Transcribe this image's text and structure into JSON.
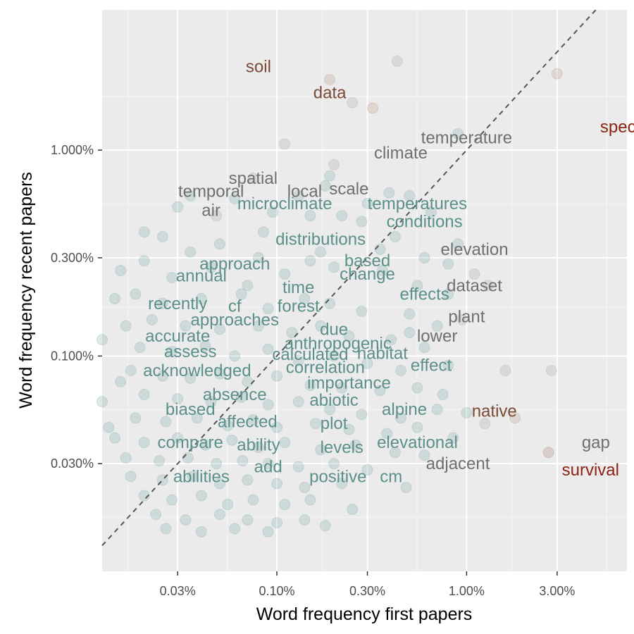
{
  "chart_data": {
    "type": "scatter",
    "title": "",
    "xlabel": "Word frequency first papers",
    "ylabel": "Word frequency recent papers",
    "x_scale": "log10",
    "y_scale": "log10",
    "xlim": [
      0.012,
      7.0
    ],
    "ylim": [
      0.009,
      4.8
    ],
    "x_ticks": [
      0.03,
      0.1,
      0.3,
      1.0,
      3.0
    ],
    "x_tick_labels": [
      "0.03%",
      "0.10%",
      "0.30%",
      "1.00%",
      "3.00%"
    ],
    "y_ticks": [
      0.03,
      0.1,
      0.3,
      1.0
    ],
    "y_tick_labels": [
      "0.030%",
      "0.100%",
      "0.300%",
      "1.000%"
    ],
    "grid": true,
    "reference_line": "y = x (dashed)",
    "colors": {
      "panel": "#ebebeb",
      "grid_major": "#ffffff",
      "grid_minor": "#f5f5f5",
      "points": "#6aa0a0",
      "teal_label": "#5b8f8a",
      "gray_label": "#6f6f6f",
      "brown_label": "#7a4a35",
      "red_label": "#8b2413",
      "diagonal": "#555555"
    },
    "labeled_words": [
      {
        "word": "soil",
        "x": 0.08,
        "y": 2.55,
        "color": "brown"
      },
      {
        "word": "data",
        "x": 0.19,
        "y": 1.9,
        "color": "brown"
      },
      {
        "word": "specie",
        "x": 6.8,
        "y": 1.3,
        "color": "red"
      },
      {
        "word": "temperature",
        "x": 1.0,
        "y": 1.15,
        "color": "gray"
      },
      {
        "word": "climate",
        "x": 0.45,
        "y": 0.97,
        "color": "gray"
      },
      {
        "word": "spatial",
        "x": 0.075,
        "y": 0.73,
        "color": "gray"
      },
      {
        "word": "temporal",
        "x": 0.045,
        "y": 0.63,
        "color": "gray"
      },
      {
        "word": "local",
        "x": 0.14,
        "y": 0.63,
        "color": "gray"
      },
      {
        "word": "scale",
        "x": 0.24,
        "y": 0.65,
        "color": "gray"
      },
      {
        "word": "air",
        "x": 0.045,
        "y": 0.51,
        "color": "gray"
      },
      {
        "word": "microclimate",
        "x": 0.11,
        "y": 0.55,
        "color": "teal"
      },
      {
        "word": "temperatures",
        "x": 0.55,
        "y": 0.55,
        "color": "teal"
      },
      {
        "word": "conditions",
        "x": 0.6,
        "y": 0.45,
        "color": "teal"
      },
      {
        "word": "distributions",
        "x": 0.17,
        "y": 0.37,
        "color": "teal"
      },
      {
        "word": "elevation",
        "x": 1.1,
        "y": 0.33,
        "color": "gray"
      },
      {
        "word": "approach",
        "x": 0.06,
        "y": 0.28,
        "color": "teal"
      },
      {
        "word": "based",
        "x": 0.3,
        "y": 0.29,
        "color": "teal"
      },
      {
        "word": "change",
        "x": 0.3,
        "y": 0.25,
        "color": "teal"
      },
      {
        "word": "annual",
        "x": 0.04,
        "y": 0.245,
        "color": "teal"
      },
      {
        "word": "dataset",
        "x": 1.1,
        "y": 0.22,
        "color": "gray"
      },
      {
        "word": "time",
        "x": 0.13,
        "y": 0.215,
        "color": "teal"
      },
      {
        "word": "effects",
        "x": 0.6,
        "y": 0.2,
        "color": "teal"
      },
      {
        "word": "recently",
        "x": 0.03,
        "y": 0.18,
        "color": "teal"
      },
      {
        "word": "cf",
        "x": 0.06,
        "y": 0.175,
        "color": "teal"
      },
      {
        "word": "forest",
        "x": 0.13,
        "y": 0.175,
        "color": "teal"
      },
      {
        "word": "approaches",
        "x": 0.06,
        "y": 0.15,
        "color": "teal"
      },
      {
        "word": "plant",
        "x": 1.0,
        "y": 0.155,
        "color": "gray"
      },
      {
        "word": "due",
        "x": 0.2,
        "y": 0.135,
        "color": "teal"
      },
      {
        "word": "accurate",
        "x": 0.03,
        "y": 0.125,
        "color": "teal"
      },
      {
        "word": "lower",
        "x": 0.7,
        "y": 0.125,
        "color": "gray"
      },
      {
        "word": "anthropogenic",
        "x": 0.21,
        "y": 0.115,
        "color": "teal"
      },
      {
        "word": "assess",
        "x": 0.035,
        "y": 0.105,
        "color": "teal"
      },
      {
        "word": "calculated",
        "x": 0.15,
        "y": 0.102,
        "color": "teal"
      },
      {
        "word": "habitat",
        "x": 0.36,
        "y": 0.103,
        "color": "teal"
      },
      {
        "word": "acknowledged",
        "x": 0.038,
        "y": 0.085,
        "color": "teal"
      },
      {
        "word": "correlation",
        "x": 0.18,
        "y": 0.088,
        "color": "teal"
      },
      {
        "word": "effect",
        "x": 0.65,
        "y": 0.09,
        "color": "teal"
      },
      {
        "word": "importance",
        "x": 0.24,
        "y": 0.074,
        "color": "teal"
      },
      {
        "word": "absence",
        "x": 0.06,
        "y": 0.065,
        "color": "teal"
      },
      {
        "word": "abiotic",
        "x": 0.2,
        "y": 0.061,
        "color": "teal"
      },
      {
        "word": "biased",
        "x": 0.035,
        "y": 0.055,
        "color": "teal"
      },
      {
        "word": "alpine",
        "x": 0.47,
        "y": 0.055,
        "color": "teal"
      },
      {
        "word": "native",
        "x": 1.4,
        "y": 0.054,
        "color": "brown"
      },
      {
        "word": "affected",
        "x": 0.07,
        "y": 0.048,
        "color": "teal"
      },
      {
        "word": "plot",
        "x": 0.2,
        "y": 0.047,
        "color": "teal"
      },
      {
        "word": "compare",
        "x": 0.035,
        "y": 0.038,
        "color": "teal"
      },
      {
        "word": "ability",
        "x": 0.08,
        "y": 0.037,
        "color": "teal"
      },
      {
        "word": "levels",
        "x": 0.22,
        "y": 0.036,
        "color": "teal"
      },
      {
        "word": "elevational",
        "x": 0.55,
        "y": 0.038,
        "color": "teal"
      },
      {
        "word": "gap",
        "x": 4.8,
        "y": 0.038,
        "color": "gray"
      },
      {
        "word": "add",
        "x": 0.09,
        "y": 0.029,
        "color": "teal"
      },
      {
        "word": "adjacent",
        "x": 0.9,
        "y": 0.03,
        "color": "gray"
      },
      {
        "word": "abilities",
        "x": 0.04,
        "y": 0.026,
        "color": "teal"
      },
      {
        "word": "positive",
        "x": 0.21,
        "y": 0.026,
        "color": "teal"
      },
      {
        "word": "cm",
        "x": 0.4,
        "y": 0.026,
        "color": "teal"
      },
      {
        "word": "survival",
        "x": 4.5,
        "y": 0.028,
        "color": "red"
      }
    ],
    "points": [
      {
        "x": 0.19,
        "y": 2.2,
        "c": "brown"
      },
      {
        "x": 0.43,
        "y": 2.7,
        "c": "gray"
      },
      {
        "x": 3.0,
        "y": 2.35,
        "c": "brown"
      },
      {
        "x": 0.25,
        "y": 1.7,
        "c": "gray"
      },
      {
        "x": 0.32,
        "y": 1.6,
        "c": "brown"
      },
      {
        "x": 0.11,
        "y": 1.07,
        "c": "gray"
      },
      {
        "x": 0.9,
        "y": 1.2,
        "c": "teal"
      },
      {
        "x": 0.2,
        "y": 0.85,
        "c": "gray"
      },
      {
        "x": 0.19,
        "y": 0.75,
        "c": "teal"
      },
      {
        "x": 0.075,
        "y": 0.73,
        "c": "gray"
      },
      {
        "x": 0.18,
        "y": 0.67,
        "c": "teal"
      },
      {
        "x": 0.39,
        "y": 0.62,
        "c": "teal"
      },
      {
        "x": 0.5,
        "y": 0.6,
        "c": "teal"
      },
      {
        "x": 0.03,
        "y": 0.53,
        "c": "teal"
      },
      {
        "x": 0.048,
        "y": 0.48,
        "c": "gray"
      },
      {
        "x": 0.095,
        "y": 0.5,
        "c": "teal"
      },
      {
        "x": 0.15,
        "y": 0.48,
        "c": "teal"
      },
      {
        "x": 0.22,
        "y": 0.48,
        "c": "teal"
      },
      {
        "x": 0.025,
        "y": 0.38,
        "c": "teal"
      },
      {
        "x": 0.035,
        "y": 0.32,
        "c": "teal"
      },
      {
        "x": 0.05,
        "y": 0.35,
        "c": "teal"
      },
      {
        "x": 0.085,
        "y": 0.4,
        "c": "teal"
      },
      {
        "x": 0.28,
        "y": 0.45,
        "c": "teal"
      },
      {
        "x": 0.42,
        "y": 0.38,
        "c": "teal"
      },
      {
        "x": 0.9,
        "y": 0.35,
        "c": "teal"
      },
      {
        "x": 0.6,
        "y": 0.3,
        "c": "teal"
      },
      {
        "x": 0.02,
        "y": 0.29,
        "c": "teal"
      },
      {
        "x": 0.015,
        "y": 0.26,
        "c": "teal"
      },
      {
        "x": 0.028,
        "y": 0.24,
        "c": "teal"
      },
      {
        "x": 0.045,
        "y": 0.27,
        "c": "teal"
      },
      {
        "x": 0.07,
        "y": 0.22,
        "c": "teal"
      },
      {
        "x": 0.11,
        "y": 0.25,
        "c": "teal"
      },
      {
        "x": 0.15,
        "y": 0.29,
        "c": "teal"
      },
      {
        "x": 0.2,
        "y": 0.27,
        "c": "teal"
      },
      {
        "x": 0.36,
        "y": 0.26,
        "c": "teal"
      },
      {
        "x": 0.55,
        "y": 0.22,
        "c": "teal"
      },
      {
        "x": 0.8,
        "y": 0.2,
        "c": "teal"
      },
      {
        "x": 1.3,
        "y": 0.22,
        "c": "gray"
      },
      {
        "x": 0.018,
        "y": 0.2,
        "c": "teal"
      },
      {
        "x": 0.025,
        "y": 0.18,
        "c": "teal"
      },
      {
        "x": 0.04,
        "y": 0.19,
        "c": "teal"
      },
      {
        "x": 0.065,
        "y": 0.2,
        "c": "teal"
      },
      {
        "x": 0.09,
        "y": 0.17,
        "c": "teal"
      },
      {
        "x": 0.14,
        "y": 0.19,
        "c": "teal"
      },
      {
        "x": 0.19,
        "y": 0.18,
        "c": "teal"
      },
      {
        "x": 0.28,
        "y": 0.165,
        "c": "teal"
      },
      {
        "x": 0.5,
        "y": 0.16,
        "c": "teal"
      },
      {
        "x": 0.7,
        "y": 0.14,
        "c": "teal"
      },
      {
        "x": 0.95,
        "y": 0.15,
        "c": "gray"
      },
      {
        "x": 0.022,
        "y": 0.15,
        "c": "teal"
      },
      {
        "x": 0.033,
        "y": 0.14,
        "c": "teal"
      },
      {
        "x": 0.05,
        "y": 0.135,
        "c": "teal"
      },
      {
        "x": 0.08,
        "y": 0.14,
        "c": "teal"
      },
      {
        "x": 0.12,
        "y": 0.13,
        "c": "teal"
      },
      {
        "x": 0.17,
        "y": 0.14,
        "c": "teal"
      },
      {
        "x": 0.24,
        "y": 0.125,
        "c": "teal"
      },
      {
        "x": 0.4,
        "y": 0.12,
        "c": "teal"
      },
      {
        "x": 0.6,
        "y": 0.11,
        "c": "teal"
      },
      {
        "x": 0.019,
        "y": 0.11,
        "c": "teal"
      },
      {
        "x": 0.028,
        "y": 0.105,
        "c": "teal"
      },
      {
        "x": 0.042,
        "y": 0.112,
        "c": "teal"
      },
      {
        "x": 0.06,
        "y": 0.1,
        "c": "teal"
      },
      {
        "x": 0.09,
        "y": 0.108,
        "c": "teal"
      },
      {
        "x": 0.13,
        "y": 0.095,
        "c": "teal"
      },
      {
        "x": 0.2,
        "y": 0.1,
        "c": "teal"
      },
      {
        "x": 0.3,
        "y": 0.092,
        "c": "teal"
      },
      {
        "x": 0.45,
        "y": 0.085,
        "c": "teal"
      },
      {
        "x": 0.8,
        "y": 0.09,
        "c": "teal"
      },
      {
        "x": 1.6,
        "y": 0.085,
        "c": "gray"
      },
      {
        "x": 2.8,
        "y": 0.085,
        "c": "gray"
      },
      {
        "x": 0.017,
        "y": 0.085,
        "c": "teal"
      },
      {
        "x": 0.025,
        "y": 0.08,
        "c": "teal"
      },
      {
        "x": 0.035,
        "y": 0.078,
        "c": "teal"
      },
      {
        "x": 0.05,
        "y": 0.082,
        "c": "teal"
      },
      {
        "x": 0.07,
        "y": 0.075,
        "c": "teal"
      },
      {
        "x": 0.1,
        "y": 0.08,
        "c": "teal"
      },
      {
        "x": 0.15,
        "y": 0.072,
        "c": "teal"
      },
      {
        "x": 0.22,
        "y": 0.07,
        "c": "teal"
      },
      {
        "x": 0.35,
        "y": 0.068,
        "c": "teal"
      },
      {
        "x": 0.55,
        "y": 0.07,
        "c": "teal"
      },
      {
        "x": 0.02,
        "y": 0.065,
        "c": "teal"
      },
      {
        "x": 0.03,
        "y": 0.062,
        "c": "teal"
      },
      {
        "x": 0.045,
        "y": 0.06,
        "c": "teal"
      },
      {
        "x": 0.065,
        "y": 0.063,
        "c": "teal"
      },
      {
        "x": 0.09,
        "y": 0.058,
        "c": "teal"
      },
      {
        "x": 0.13,
        "y": 0.06,
        "c": "teal"
      },
      {
        "x": 0.19,
        "y": 0.055,
        "c": "teal"
      },
      {
        "x": 0.28,
        "y": 0.052,
        "c": "teal"
      },
      {
        "x": 0.45,
        "y": 0.05,
        "c": "teal"
      },
      {
        "x": 0.7,
        "y": 0.055,
        "c": "teal"
      },
      {
        "x": 1.0,
        "y": 0.053,
        "c": "teal"
      },
      {
        "x": 1.25,
        "y": 0.047,
        "c": "gray"
      },
      {
        "x": 1.8,
        "y": 0.05,
        "c": "brown"
      },
      {
        "x": 0.018,
        "y": 0.05,
        "c": "teal"
      },
      {
        "x": 0.026,
        "y": 0.048,
        "c": "teal"
      },
      {
        "x": 0.038,
        "y": 0.05,
        "c": "teal"
      },
      {
        "x": 0.055,
        "y": 0.046,
        "c": "teal"
      },
      {
        "x": 0.075,
        "y": 0.049,
        "c": "teal"
      },
      {
        "x": 0.1,
        "y": 0.045,
        "c": "teal"
      },
      {
        "x": 0.16,
        "y": 0.047,
        "c": "teal"
      },
      {
        "x": 0.24,
        "y": 0.044,
        "c": "teal"
      },
      {
        "x": 0.38,
        "y": 0.042,
        "c": "teal"
      },
      {
        "x": 0.014,
        "y": 0.04,
        "c": "teal"
      },
      {
        "x": 0.02,
        "y": 0.038,
        "c": "teal"
      },
      {
        "x": 0.03,
        "y": 0.04,
        "c": "teal"
      },
      {
        "x": 0.042,
        "y": 0.037,
        "c": "teal"
      },
      {
        "x": 0.058,
        "y": 0.039,
        "c": "teal"
      },
      {
        "x": 0.08,
        "y": 0.036,
        "c": "teal"
      },
      {
        "x": 0.11,
        "y": 0.038,
        "c": "teal"
      },
      {
        "x": 0.17,
        "y": 0.035,
        "c": "teal"
      },
      {
        "x": 0.26,
        "y": 0.037,
        "c": "teal"
      },
      {
        "x": 0.42,
        "y": 0.034,
        "c": "teal"
      },
      {
        "x": 0.6,
        "y": 0.033,
        "c": "teal"
      },
      {
        "x": 2.7,
        "y": 0.034,
        "c": "red"
      },
      {
        "x": 0.016,
        "y": 0.032,
        "c": "teal"
      },
      {
        "x": 0.024,
        "y": 0.031,
        "c": "teal"
      },
      {
        "x": 0.034,
        "y": 0.032,
        "c": "teal"
      },
      {
        "x": 0.048,
        "y": 0.03,
        "c": "teal"
      },
      {
        "x": 0.066,
        "y": 0.031,
        "c": "teal"
      },
      {
        "x": 0.09,
        "y": 0.03,
        "c": "teal"
      },
      {
        "x": 0.13,
        "y": 0.029,
        "c": "teal"
      },
      {
        "x": 0.2,
        "y": 0.03,
        "c": "teal"
      },
      {
        "x": 0.3,
        "y": 0.028,
        "c": "teal"
      },
      {
        "x": 0.017,
        "y": 0.026,
        "c": "teal"
      },
      {
        "x": 0.025,
        "y": 0.025,
        "c": "teal"
      },
      {
        "x": 0.036,
        "y": 0.026,
        "c": "teal"
      },
      {
        "x": 0.05,
        "y": 0.024,
        "c": "teal"
      },
      {
        "x": 0.07,
        "y": 0.025,
        "c": "teal"
      },
      {
        "x": 0.1,
        "y": 0.024,
        "c": "teal"
      },
      {
        "x": 0.14,
        "y": 0.023,
        "c": "teal"
      },
      {
        "x": 0.22,
        "y": 0.024,
        "c": "teal"
      },
      {
        "x": 0.48,
        "y": 0.023,
        "c": "teal"
      },
      {
        "x": 0.02,
        "y": 0.021,
        "c": "teal"
      },
      {
        "x": 0.028,
        "y": 0.02,
        "c": "teal"
      },
      {
        "x": 0.04,
        "y": 0.021,
        "c": "teal"
      },
      {
        "x": 0.055,
        "y": 0.019,
        "c": "teal"
      },
      {
        "x": 0.075,
        "y": 0.02,
        "c": "teal"
      },
      {
        "x": 0.11,
        "y": 0.019,
        "c": "teal"
      },
      {
        "x": 0.15,
        "y": 0.02,
        "c": "teal"
      },
      {
        "x": 0.25,
        "y": 0.018,
        "c": "teal"
      },
      {
        "x": 0.023,
        "y": 0.017,
        "c": "teal"
      },
      {
        "x": 0.033,
        "y": 0.016,
        "c": "teal"
      },
      {
        "x": 0.05,
        "y": 0.017,
        "c": "teal"
      },
      {
        "x": 0.07,
        "y": 0.016,
        "c": "teal"
      },
      {
        "x": 0.1,
        "y": 0.0155,
        "c": "teal"
      },
      {
        "x": 0.14,
        "y": 0.016,
        "c": "teal"
      },
      {
        "x": 0.18,
        "y": 0.015,
        "c": "teal"
      },
      {
        "x": 0.026,
        "y": 0.0145,
        "c": "teal"
      },
      {
        "x": 0.04,
        "y": 0.014,
        "c": "teal"
      },
      {
        "x": 0.06,
        "y": 0.0145,
        "c": "teal"
      },
      {
        "x": 0.09,
        "y": 0.014,
        "c": "teal"
      },
      {
        "x": 0.012,
        "y": 0.06,
        "c": "teal"
      },
      {
        "x": 0.013,
        "y": 0.045,
        "c": "teal"
      },
      {
        "x": 0.015,
        "y": 0.075,
        "c": "teal"
      },
      {
        "x": 0.012,
        "y": 0.12,
        "c": "teal"
      },
      {
        "x": 0.016,
        "y": 0.14,
        "c": "teal"
      },
      {
        "x": 0.014,
        "y": 0.19,
        "c": "teal"
      },
      {
        "x": 0.02,
        "y": 0.4,
        "c": "teal"
      },
      {
        "x": 0.035,
        "y": 0.6,
        "c": "teal"
      },
      {
        "x": 0.06,
        "y": 0.58,
        "c": "teal"
      },
      {
        "x": 0.13,
        "y": 0.6,
        "c": "teal"
      },
      {
        "x": 0.3,
        "y": 0.55,
        "c": "teal"
      },
      {
        "x": 0.65,
        "y": 0.5,
        "c": "teal"
      },
      {
        "x": 0.8,
        "y": 0.28,
        "c": "teal"
      },
      {
        "x": 1.1,
        "y": 0.25,
        "c": "gray"
      },
      {
        "x": 0.08,
        "y": 0.3,
        "c": "teal"
      },
      {
        "x": 0.17,
        "y": 0.32,
        "c": "teal"
      },
      {
        "x": 0.35,
        "y": 0.33,
        "c": "teal"
      },
      {
        "x": 0.5,
        "y": 0.13,
        "c": "teal"
      },
      {
        "x": 0.75,
        "y": 0.065,
        "c": "teal"
      },
      {
        "x": 0.55,
        "y": 0.045,
        "c": "teal"
      },
      {
        "x": 0.85,
        "y": 0.04,
        "c": "teal"
      }
    ]
  }
}
